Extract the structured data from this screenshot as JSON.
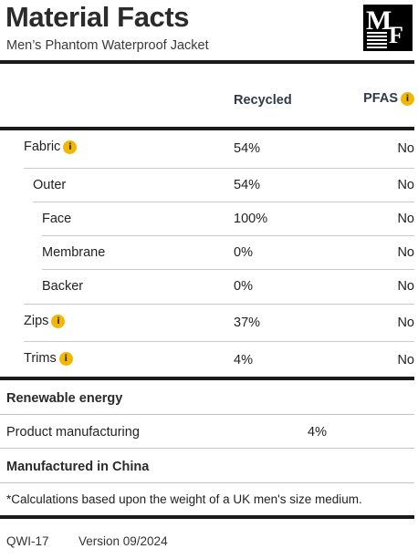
{
  "header": {
    "title": "Material Facts",
    "subtitle": "Men’s Phantom Waterproof Jacket",
    "logo_letters": [
      "M",
      "F"
    ]
  },
  "columns": {
    "recycled": "Recycled",
    "pfas": "PFAS"
  },
  "rows": [
    {
      "label": "Fabric",
      "recycled": "54%",
      "pfas": "No",
      "info": true
    },
    {
      "label": "Outer",
      "recycled": "54%",
      "pfas": "No",
      "info": false
    },
    {
      "label": "Face",
      "recycled": "100%",
      "pfas": "No",
      "info": false
    },
    {
      "label": "Membrane",
      "recycled": "0%",
      "pfas": "No",
      "info": false
    },
    {
      "label": "Backer",
      "recycled": "0%",
      "pfas": "No",
      "info": false
    },
    {
      "label": "Zips",
      "recycled": "37%",
      "pfas": "No",
      "info": true
    },
    {
      "label": "Trims",
      "recycled": "4%",
      "pfas": "No",
      "info": true
    }
  ],
  "renewable": {
    "heading": "Renewable energy",
    "item_label": "Product manufacturing",
    "item_value": "4%"
  },
  "manufactured": "Manufactured in China",
  "footnote": "*Calculations based upon the weight of a UK men's size medium.",
  "footer": {
    "code": "QWI-17",
    "version": "Version 09/2024"
  },
  "colors": {
    "info_badge": "#f2b705",
    "rule": "#1a1a1a",
    "header_text": "#2f3a48"
  },
  "icons": {
    "info": "i"
  }
}
